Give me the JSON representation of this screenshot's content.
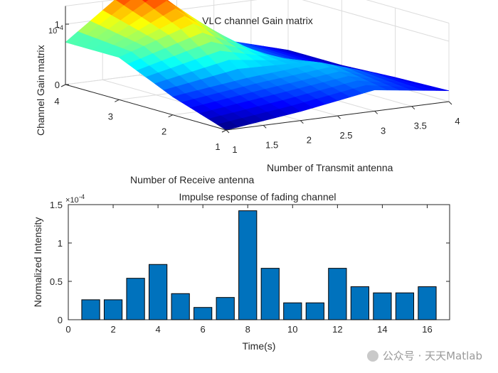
{
  "chart_data": [
    {
      "type": "surface",
      "title": "VLC channel Gain matrix",
      "xlabel": "Number of Transmit antenna",
      "ylabel": "Number of Receive antenna",
      "zlabel": "Channel Gain matrix",
      "z_exponent": "10",
      "z_exponent_power": "-4",
      "xticks": [
        "1",
        "1.5",
        "2",
        "2.5",
        "3",
        "3.5",
        "4"
      ],
      "yticks": [
        "1",
        "2",
        "3",
        "4"
      ],
      "zticks": [
        "0",
        "1"
      ],
      "x": [
        1,
        2,
        3,
        4
      ],
      "y": [
        1,
        2,
        3,
        4
      ],
      "z": [
        [
          0.0,
          0.15,
          0.35,
          0.18
        ],
        [
          0.3,
          0.45,
          0.55,
          0.15
        ],
        [
          0.7,
          1.1,
          0.4,
          0.1
        ],
        [
          0.7,
          1.6,
          0.45,
          0.1
        ]
      ],
      "zlim": [
        0,
        1.7
      ],
      "colormap": "jet",
      "grid": true
    },
    {
      "type": "bar",
      "title": "Impulse response of fading channel",
      "xlabel": "Time(s)",
      "ylabel": "Normalized Intensity",
      "y_exponent": "10",
      "y_exponent_power": "-4",
      "bar_color": "#0072BD",
      "categories": [
        1,
        2,
        3,
        4,
        5,
        6,
        7,
        8,
        9,
        10,
        11,
        12,
        13,
        14,
        15,
        16
      ],
      "values": [
        0.26,
        0.26,
        0.54,
        0.72,
        0.34,
        0.16,
        0.29,
        1.42,
        0.67,
        0.22,
        0.22,
        0.67,
        0.43,
        0.35,
        0.35,
        0.43
      ],
      "xlim": [
        0,
        17
      ],
      "ylim": [
        0,
        1.5
      ],
      "xticks": [
        "0",
        "2",
        "4",
        "6",
        "8",
        "10",
        "12",
        "14",
        "16"
      ],
      "yticks": [
        "0",
        "0.5",
        "1",
        "1.5"
      ]
    }
  ],
  "watermark": "公众号 · 天天Matlab"
}
